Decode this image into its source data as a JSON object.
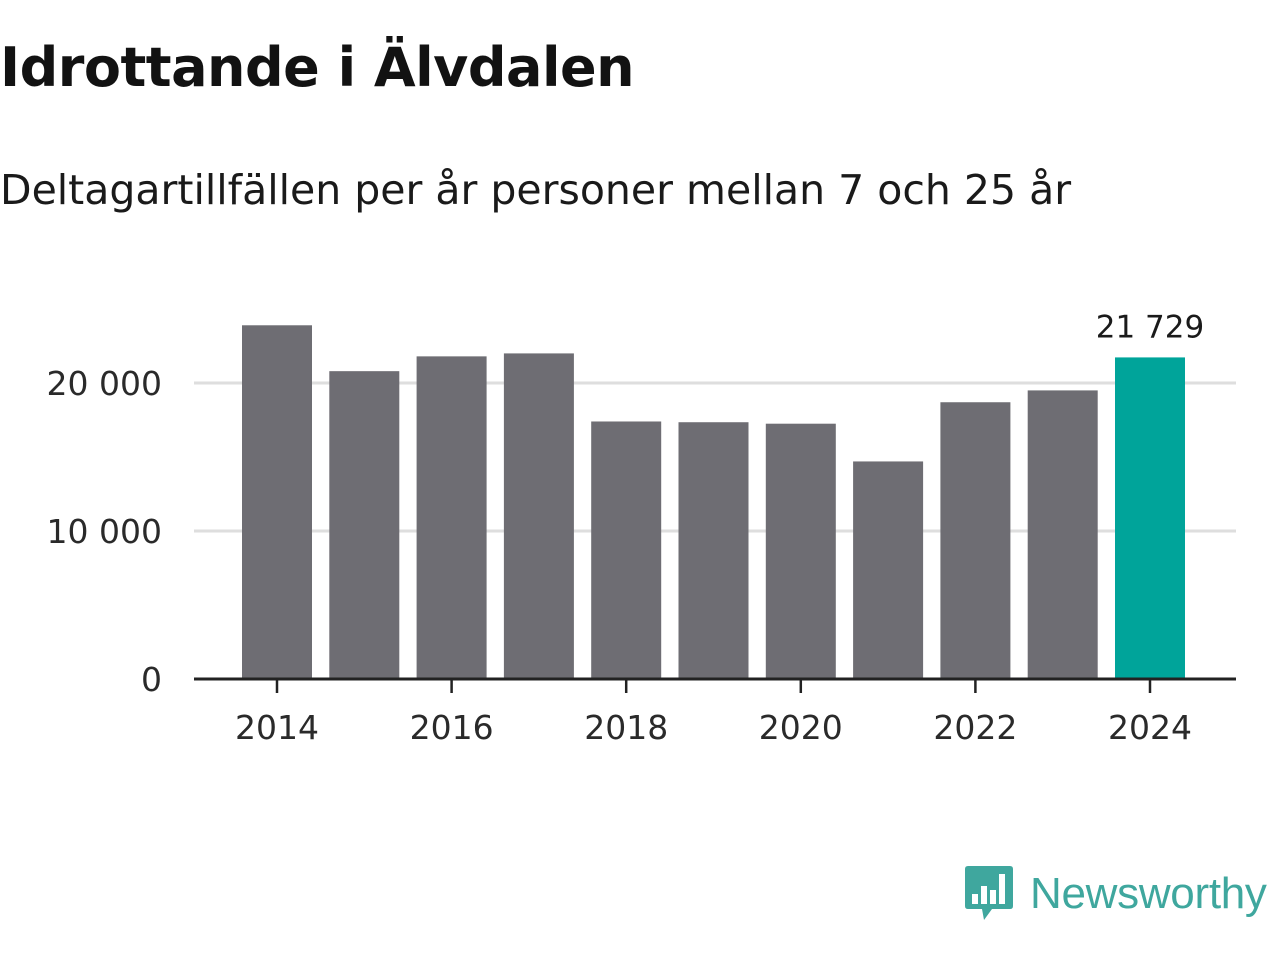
{
  "title": "Idrottande i Älvdalen",
  "subtitle": "Deltagartillfällen per år personer mellan 7 och 25 år",
  "brand": {
    "name": "Newsworthy",
    "color": "#3fa79e",
    "icon": "newsworthy-logo-icon"
  },
  "colors": {
    "bar": "#6e6d73",
    "highlight": "#00a49a",
    "grid": "#dedede",
    "axis": "#222222"
  },
  "chart_data": {
    "type": "bar",
    "title": "Idrottande i Älvdalen",
    "subtitle": "Deltagartillfällen per år personer mellan 7 och 25 år",
    "xlabel": "",
    "ylabel": "",
    "categories": [
      "2014",
      "2015",
      "2016",
      "2017",
      "2018",
      "2019",
      "2020",
      "2021",
      "2022",
      "2023",
      "2024"
    ],
    "values": [
      23900,
      20800,
      21800,
      22000,
      17400,
      17350,
      17250,
      14700,
      18700,
      19500,
      21729
    ],
    "ylim": [
      0,
      25000
    ],
    "yticks": [
      0,
      10000,
      20000
    ],
    "ytick_labels": [
      "0",
      "10 000",
      "20 000"
    ],
    "xticks": [
      "2014",
      "2016",
      "2018",
      "2020",
      "2022",
      "2024"
    ],
    "highlight": {
      "category": "2024",
      "label": "21 729"
    },
    "grid": true,
    "legend": "none"
  }
}
